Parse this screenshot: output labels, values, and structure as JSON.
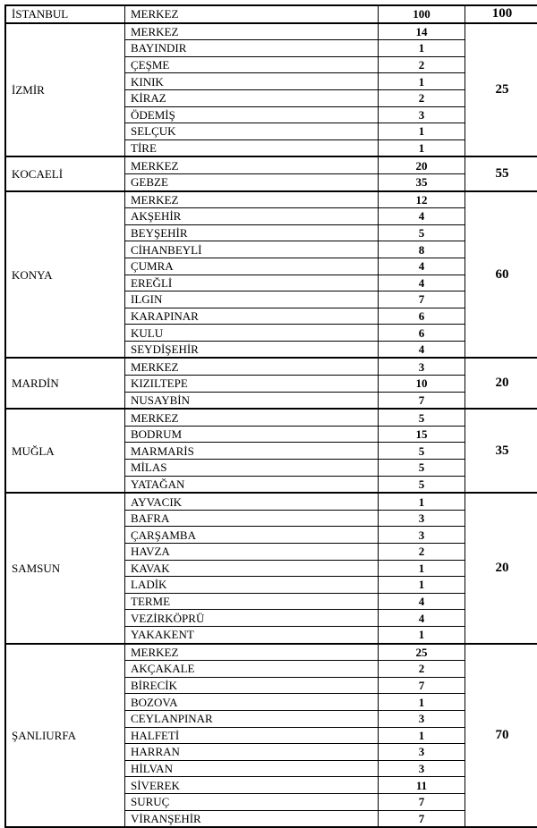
{
  "table": {
    "description": "Province / district allocation table",
    "provinces": [
      {
        "name": "İSTANBUL",
        "total": "100",
        "districts": [
          {
            "name": "MERKEZ",
            "count": "100"
          }
        ]
      },
      {
        "name": "İZMİR",
        "total": "25",
        "districts": [
          {
            "name": "MERKEZ",
            "count": "14"
          },
          {
            "name": "BAYINDIR",
            "count": "1"
          },
          {
            "name": "ÇEŞME",
            "count": "2"
          },
          {
            "name": "KINIK",
            "count": "1"
          },
          {
            "name": "KİRAZ",
            "count": "2"
          },
          {
            "name": "ÖDEMİŞ",
            "count": "3"
          },
          {
            "name": "SELÇUK",
            "count": "1"
          },
          {
            "name": "TİRE",
            "count": "1"
          }
        ]
      },
      {
        "name": "KOCAELİ",
        "total": "55",
        "districts": [
          {
            "name": "MERKEZ",
            "count": "20"
          },
          {
            "name": "GEBZE",
            "count": "35"
          }
        ]
      },
      {
        "name": "KONYA",
        "total": "60",
        "districts": [
          {
            "name": "MERKEZ",
            "count": "12"
          },
          {
            "name": "AKŞEHİR",
            "count": "4"
          },
          {
            "name": "BEYŞEHİR",
            "count": "5"
          },
          {
            "name": "CİHANBEYLİ",
            "count": "8"
          },
          {
            "name": "ÇUMRA",
            "count": "4"
          },
          {
            "name": "EREĞLİ",
            "count": "4"
          },
          {
            "name": "ILGIN",
            "count": "7"
          },
          {
            "name": "KARAPINAR",
            "count": "6"
          },
          {
            "name": "KULU",
            "count": "6"
          },
          {
            "name": "SEYDİŞEHİR",
            "count": "4"
          }
        ]
      },
      {
        "name": "MARDİN",
        "total": "20",
        "districts": [
          {
            "name": "MERKEZ",
            "count": "3"
          },
          {
            "name": "KIZILTEPE",
            "count": "10"
          },
          {
            "name": "NUSAYBİN",
            "count": "7"
          }
        ]
      },
      {
        "name": "MUĞLA",
        "total": "35",
        "districts": [
          {
            "name": "MERKEZ",
            "count": "5"
          },
          {
            "name": "BODRUM",
            "count": "15"
          },
          {
            "name": "MARMARİS",
            "count": "5"
          },
          {
            "name": "MİLAS",
            "count": "5"
          },
          {
            "name": "YATAĞAN",
            "count": "5"
          }
        ]
      },
      {
        "name": "SAMSUN",
        "total": "20",
        "districts": [
          {
            "name": "AYVACIK",
            "count": "1"
          },
          {
            "name": "BAFRA",
            "count": "3"
          },
          {
            "name": "ÇARŞAMBA",
            "count": "3"
          },
          {
            "name": "HAVZA",
            "count": "2"
          },
          {
            "name": "KAVAK",
            "count": "1"
          },
          {
            "name": "LADİK",
            "count": "1"
          },
          {
            "name": "TERME",
            "count": "4"
          },
          {
            "name": "VEZİRKÖPRÜ",
            "count": "4"
          },
          {
            "name": "YAKAKENT",
            "count": "1"
          }
        ]
      },
      {
        "name": "ŞANLIURFA",
        "total": "70",
        "districts": [
          {
            "name": "MERKEZ",
            "count": "25"
          },
          {
            "name": "AKÇAKALE",
            "count": "2"
          },
          {
            "name": "BİRECİK",
            "count": "7"
          },
          {
            "name": "BOZOVA",
            "count": "1"
          },
          {
            "name": "CEYLANPINAR",
            "count": "3"
          },
          {
            "name": "HALFETİ",
            "count": "1"
          },
          {
            "name": "HARRAN",
            "count": "3"
          },
          {
            "name": "HİLVAN",
            "count": "3"
          },
          {
            "name": "SİVEREK",
            "count": "11"
          },
          {
            "name": "SURUÇ",
            "count": "7"
          },
          {
            "name": "VİRANŞEHİR",
            "count": "7"
          }
        ]
      }
    ]
  }
}
